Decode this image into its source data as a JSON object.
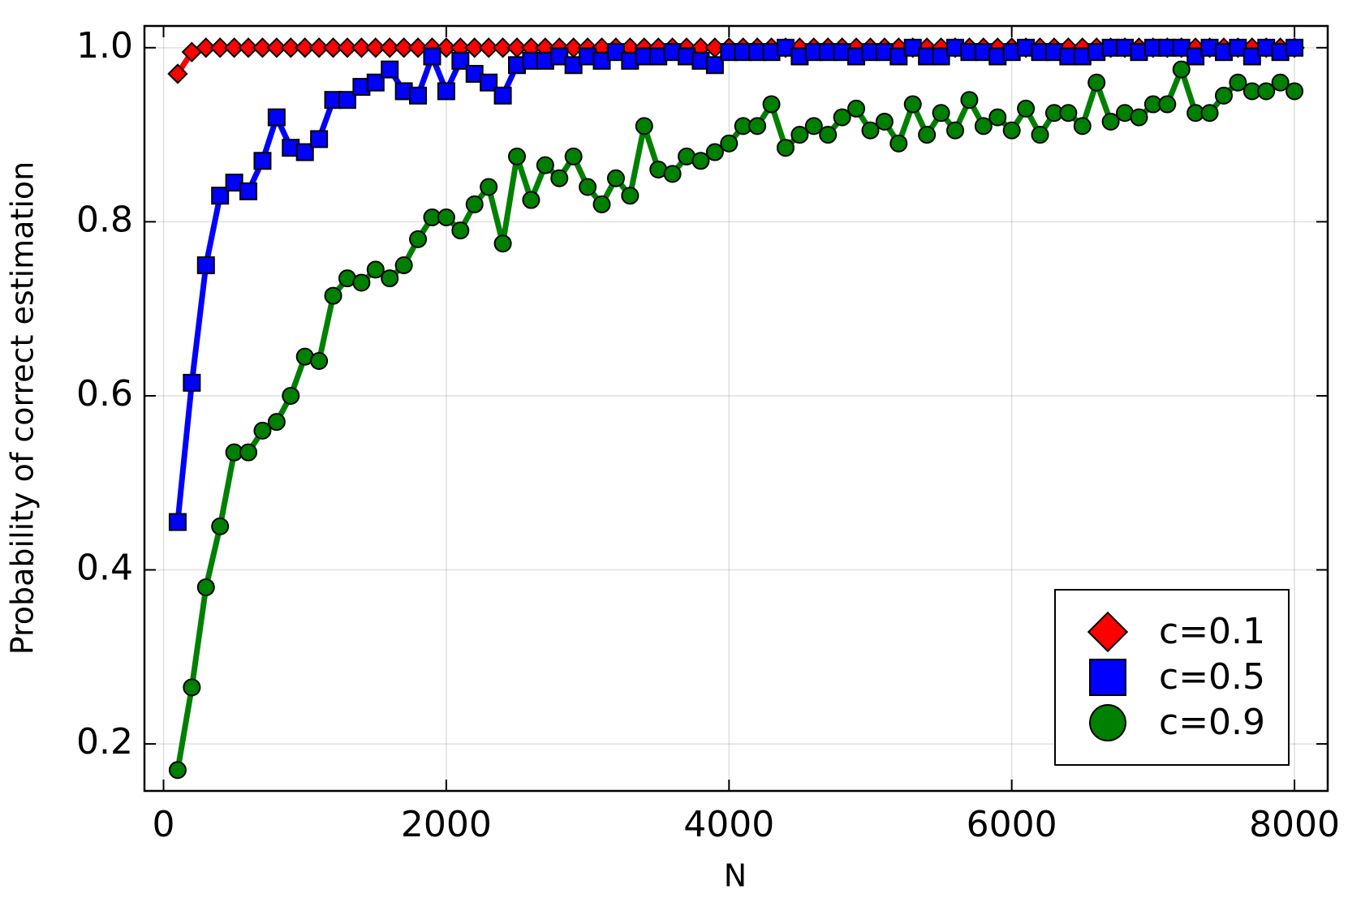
{
  "chart_data": {
    "type": "line",
    "xlabel": "N",
    "ylabel": "Probability of correct estimation",
    "x": [
      100,
      200,
      300,
      400,
      500,
      600,
      700,
      800,
      900,
      1000,
      1100,
      1200,
      1300,
      1400,
      1500,
      1600,
      1700,
      1800,
      1900,
      2000,
      2100,
      2200,
      2300,
      2400,
      2500,
      2600,
      2700,
      2800,
      2900,
      3000,
      3100,
      3200,
      3300,
      3400,
      3500,
      3600,
      3700,
      3800,
      3900,
      4000,
      4100,
      4200,
      4300,
      4400,
      4500,
      4600,
      4700,
      4800,
      4900,
      5000,
      5100,
      5200,
      5300,
      5400,
      5500,
      5600,
      5700,
      5800,
      5900,
      6000,
      6100,
      6200,
      6300,
      6400,
      6500,
      6600,
      6700,
      6800,
      6900,
      7000,
      7100,
      7200,
      7300,
      7400,
      7500,
      7600,
      7700,
      7800,
      7900,
      8000
    ],
    "series": [
      {
        "name": "c=0.1",
        "color": "#ff0000",
        "marker": "diamond",
        "values": [
          0.97,
          0.995,
          1,
          1,
          1,
          1,
          1,
          1,
          1,
          1,
          1,
          1,
          1,
          1,
          1,
          1,
          1,
          1,
          1,
          1,
          1,
          1,
          1,
          1,
          1,
          1,
          1,
          1,
          1,
          1,
          1,
          1,
          1,
          1,
          1,
          1,
          1,
          1,
          1,
          1,
          1,
          1,
          1,
          1,
          1,
          1,
          1,
          1,
          1,
          1,
          1,
          1,
          1,
          1,
          1,
          1,
          1,
          1,
          1,
          1,
          1,
          1,
          1,
          1,
          1,
          1,
          1,
          1,
          1,
          1,
          1,
          1,
          1,
          1,
          1,
          1,
          1,
          1,
          1,
          1
        ]
      },
      {
        "name": "c=0.5",
        "color": "#0000ff",
        "marker": "square",
        "values": [
          0.455,
          0.615,
          0.75,
          0.83,
          0.845,
          0.835,
          0.87,
          0.92,
          0.885,
          0.88,
          0.895,
          0.94,
          0.94,
          0.955,
          0.96,
          0.975,
          0.95,
          0.945,
          0.99,
          0.95,
          0.985,
          0.97,
          0.96,
          0.945,
          0.98,
          0.985,
          0.985,
          0.99,
          0.98,
          0.99,
          0.985,
          0.995,
          0.985,
          0.99,
          0.99,
          0.995,
          0.99,
          0.985,
          0.98,
          0.995,
          0.995,
          0.995,
          0.995,
          1,
          0.99,
          0.995,
          0.995,
          0.995,
          0.99,
          0.995,
          0.995,
          0.99,
          1,
          0.99,
          0.99,
          1,
          0.995,
          0.995,
          0.99,
          0.995,
          1,
          0.995,
          0.995,
          0.99,
          0.99,
          0.995,
          1,
          1,
          0.995,
          1,
          1,
          1,
          0.99,
          1,
          0.995,
          1,
          0.99,
          1,
          0.995,
          1
        ]
      },
      {
        "name": "c=0.9",
        "color": "#008000",
        "marker": "circle",
        "values": [
          0.17,
          0.265,
          0.38,
          0.45,
          0.535,
          0.535,
          0.56,
          0.57,
          0.6,
          0.645,
          0.64,
          0.715,
          0.735,
          0.73,
          0.745,
          0.735,
          0.75,
          0.78,
          0.805,
          0.805,
          0.79,
          0.82,
          0.84,
          0.775,
          0.875,
          0.825,
          0.865,
          0.85,
          0.875,
          0.84,
          0.82,
          0.85,
          0.83,
          0.91,
          0.86,
          0.855,
          0.875,
          0.87,
          0.88,
          0.89,
          0.91,
          0.91,
          0.935,
          0.885,
          0.9,
          0.91,
          0.9,
          0.92,
          0.93,
          0.905,
          0.915,
          0.89,
          0.935,
          0.9,
          0.925,
          0.905,
          0.94,
          0.91,
          0.92,
          0.905,
          0.93,
          0.9,
          0.925,
          0.925,
          0.91,
          0.96,
          0.915,
          0.925,
          0.92,
          0.935,
          0.935,
          0.975,
          0.925,
          0.925,
          0.945,
          0.96,
          0.95,
          0.95,
          0.96,
          0.95
        ]
      }
    ],
    "xlim": [
      -135,
      8235
    ],
    "ylim": [
      0.146,
      1.025
    ],
    "xticks": [
      0,
      2000,
      4000,
      6000,
      8000
    ],
    "yticks": [
      0.2,
      0.4,
      0.6,
      0.8,
      {
        "value": 1,
        "label": "1.0"
      }
    ],
    "grid": true,
    "legend": "lower right"
  }
}
